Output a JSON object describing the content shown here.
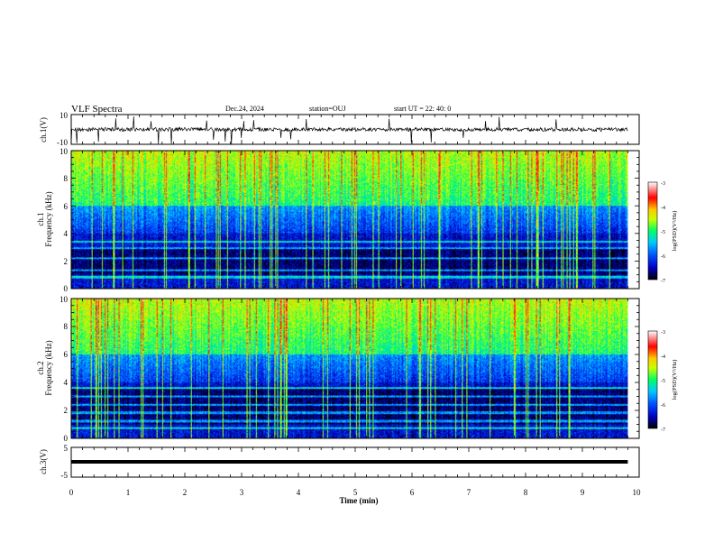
{
  "header": {
    "title": "VLF Spectra",
    "date": "Dec.24, 2024",
    "station": "station=OUJ",
    "start_time": "start  UT =   22: 40: 0"
  },
  "chart_data": {
    "type": "heatmap",
    "x_axis": {
      "label": "Time  (min)",
      "range": [
        0,
        10
      ],
      "ticks": [
        "0",
        "1",
        "2",
        "3",
        "4",
        "5",
        "6",
        "7",
        "8",
        "9",
        "10"
      ]
    },
    "panels": [
      {
        "kind": "waveform",
        "ylabel": "ch.1(V)",
        "ylim": [
          -10,
          10
        ],
        "yticks": [
          "10",
          "-10"
        ],
        "baseline": 0
      },
      {
        "kind": "spectrogram",
        "ylabel_top": "ch.1",
        "ylabel": "Frequency  (kHz)",
        "ylim": [
          0,
          10
        ],
        "yticks": [
          "0",
          "2",
          "4",
          "6",
          "8",
          "10"
        ],
        "colorbar": {
          "label": "log(PSD)(V²/Hz)",
          "range": [
            -7,
            -3
          ],
          "ticks": [
            "-3",
            "-4",
            "-5",
            "-6",
            "-7"
          ]
        },
        "band_structure_khz": {
          "quiet_below": 6,
          "dark_band": [
            1,
            3
          ],
          "tone_lines": [
            0.8,
            1.3,
            2.2,
            2.9,
            3.4
          ]
        }
      },
      {
        "kind": "spectrogram",
        "ylabel_top": "ch.2",
        "ylabel": "Frequency  (kHz)",
        "ylim": [
          0,
          10
        ],
        "yticks": [
          "0",
          "2",
          "4",
          "6",
          "8",
          "10"
        ],
        "colorbar": {
          "label": "log(PSD)(V²/Hz)",
          "range": [
            -7,
            -3
          ],
          "ticks": [
            "-3",
            "-4",
            "-5",
            "-6",
            "-7"
          ]
        },
        "band_structure_khz": {
          "quiet_below": 6,
          "dark_band": [
            1,
            3.5
          ],
          "tone_lines": [
            0.7,
            1.2,
            1.8,
            2.4,
            3.0,
            3.6
          ]
        }
      },
      {
        "kind": "waveform",
        "ylabel": "ch.3(V)",
        "ylim": [
          -5,
          5
        ],
        "yticks": [
          "5",
          "-5"
        ],
        "baseline": 0
      }
    ],
    "colormap": [
      "#000080",
      "#0000ff",
      "#00bfff",
      "#00ff80",
      "#ffff00",
      "#ff8000",
      "#ff0000",
      "#ffffff"
    ],
    "data_extent_min": 9.8
  }
}
